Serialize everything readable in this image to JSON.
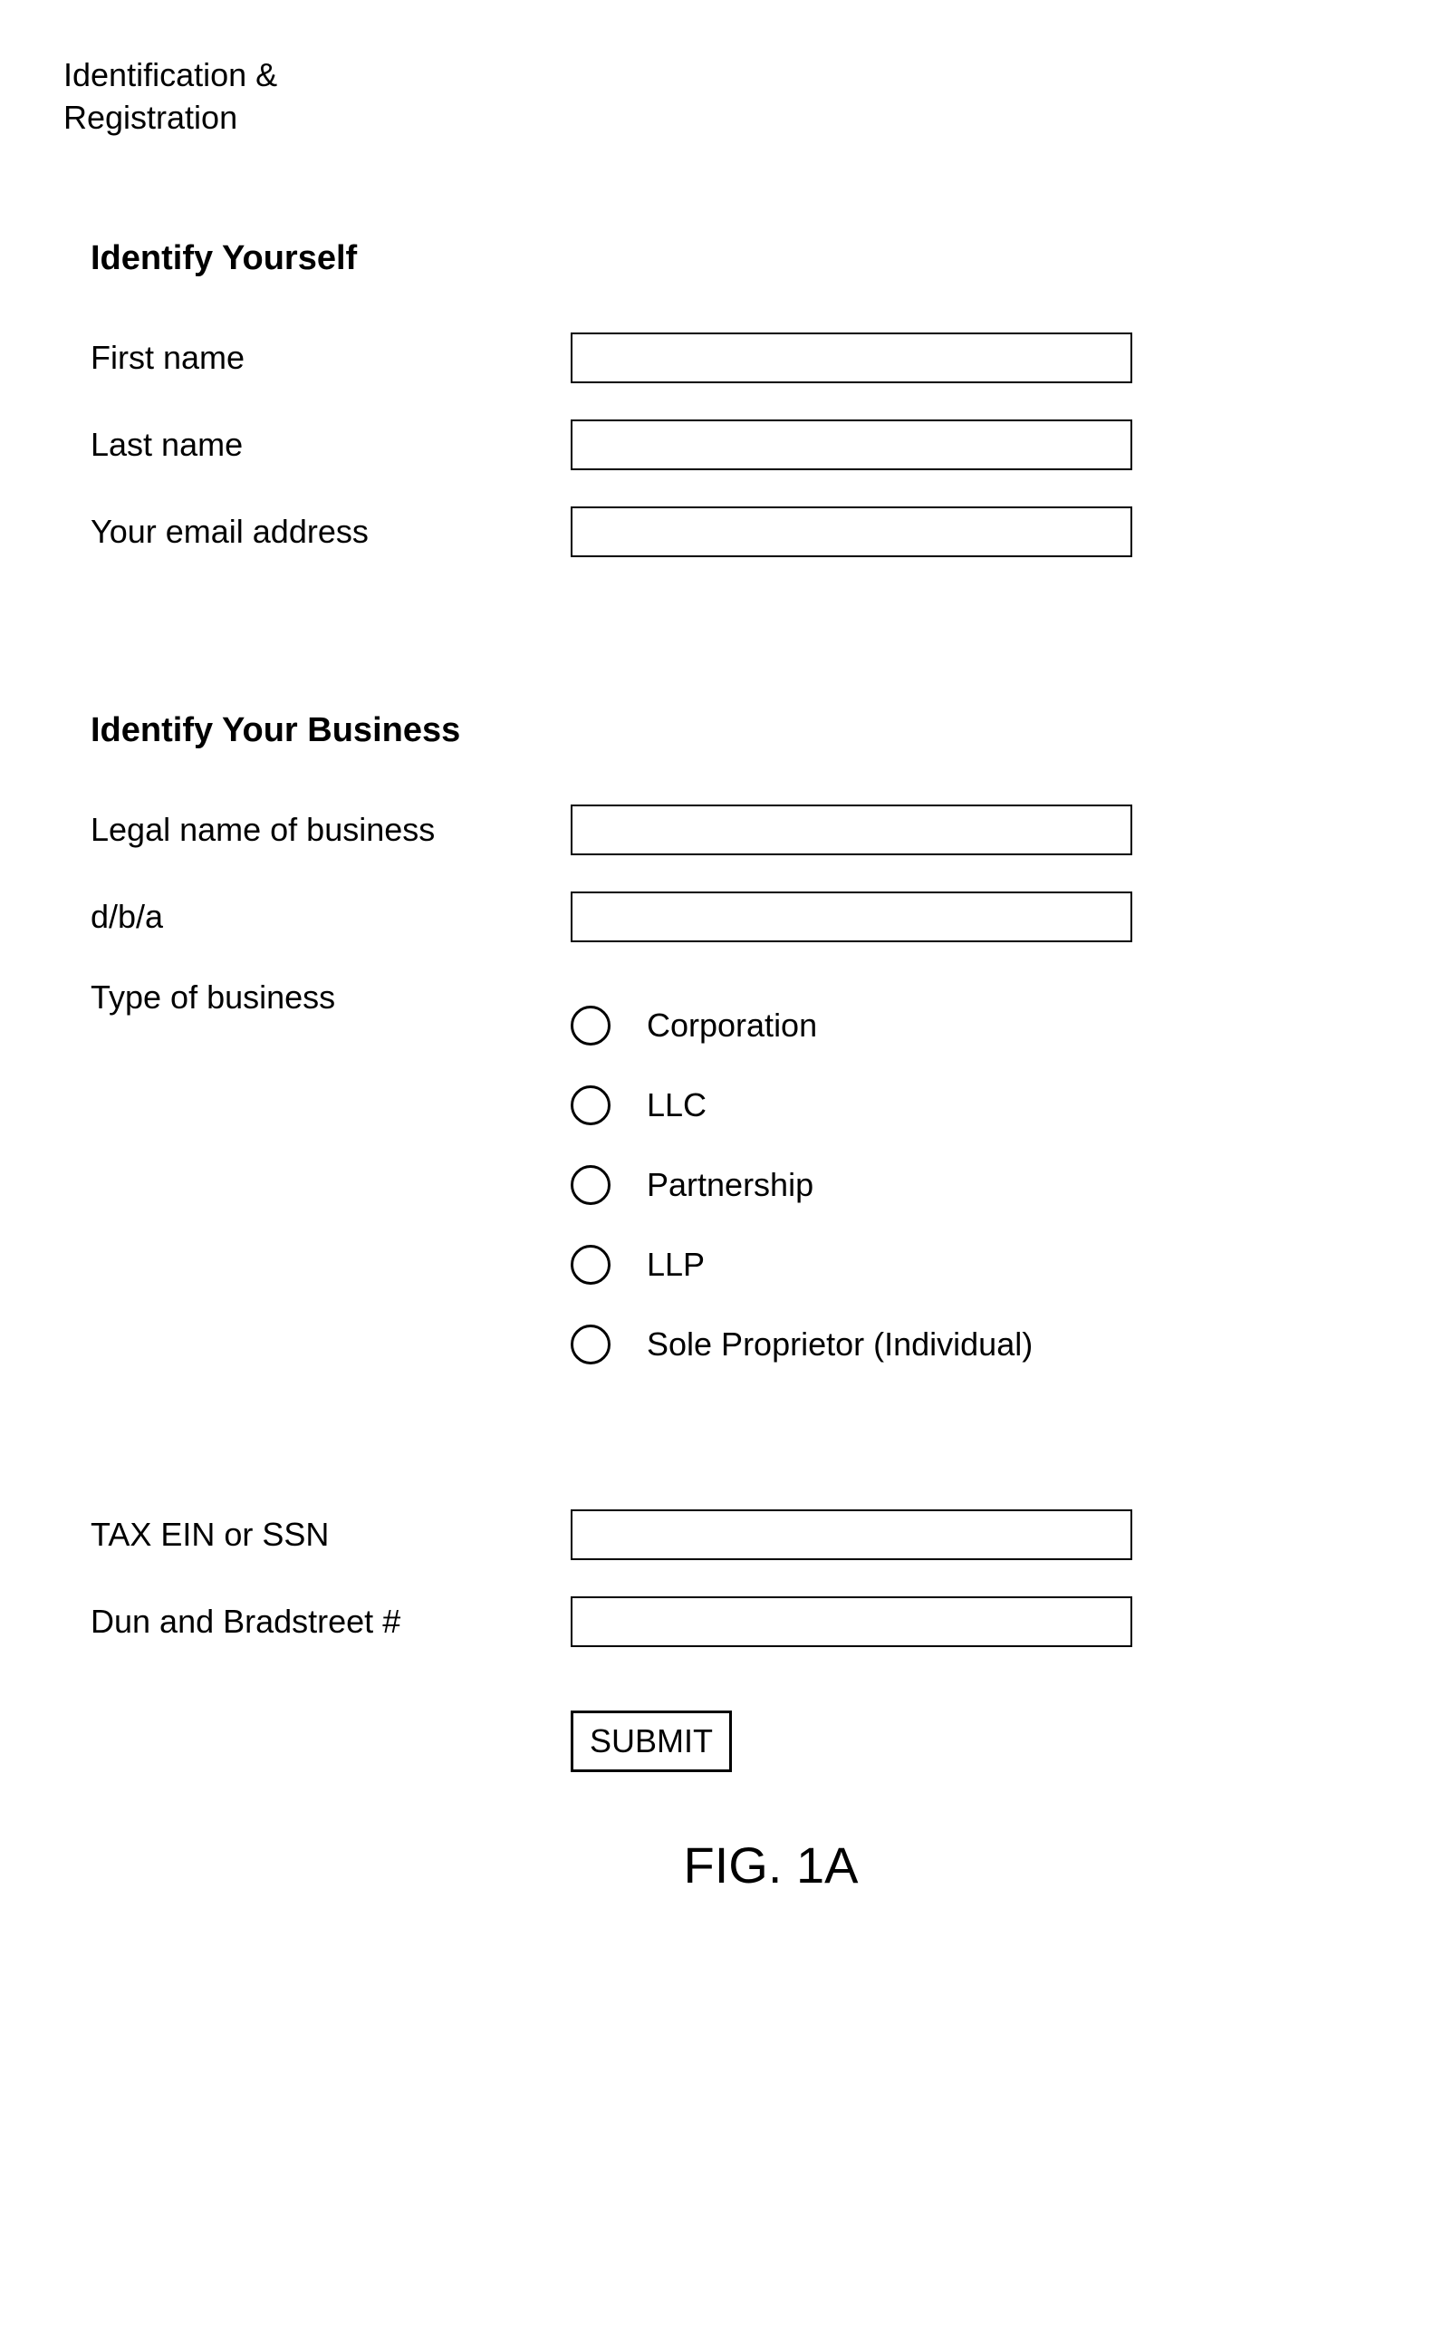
{
  "header": {
    "line1": "Identification &",
    "line2": "Registration"
  },
  "sections": {
    "identify_yourself": {
      "heading": "Identify Yourself",
      "fields": {
        "first_name": {
          "label": "First name",
          "value": ""
        },
        "last_name": {
          "label": "Last name",
          "value": ""
        },
        "email": {
          "label": "Your email address",
          "value": ""
        }
      }
    },
    "identify_business": {
      "heading": "Identify Your Business",
      "fields": {
        "legal_name": {
          "label": "Legal name of business",
          "value": ""
        },
        "dba": {
          "label": "d/b/a",
          "value": ""
        },
        "tax_ein_ssn": {
          "label": "TAX EIN or SSN",
          "value": ""
        },
        "dun_bradstreet": {
          "label": "Dun and Bradstreet #",
          "value": ""
        }
      },
      "type_of_business": {
        "label": "Type of business",
        "options": [
          "Corporation",
          "LLC",
          "Partnership",
          "LLP",
          "Sole Proprietor (Individual)"
        ]
      }
    }
  },
  "submit": {
    "label": "SUBMIT"
  },
  "figure": {
    "caption": "FIG. 1A"
  },
  "styling": {
    "background_color": "#ffffff",
    "text_color": "#000000",
    "border_color": "#000000",
    "body_font_size": 36,
    "heading_font_size": 38,
    "caption_font_size": 56,
    "input_border_width": 2,
    "radio_border_width": 3,
    "radio_diameter": 44,
    "font_family": "Arial"
  }
}
